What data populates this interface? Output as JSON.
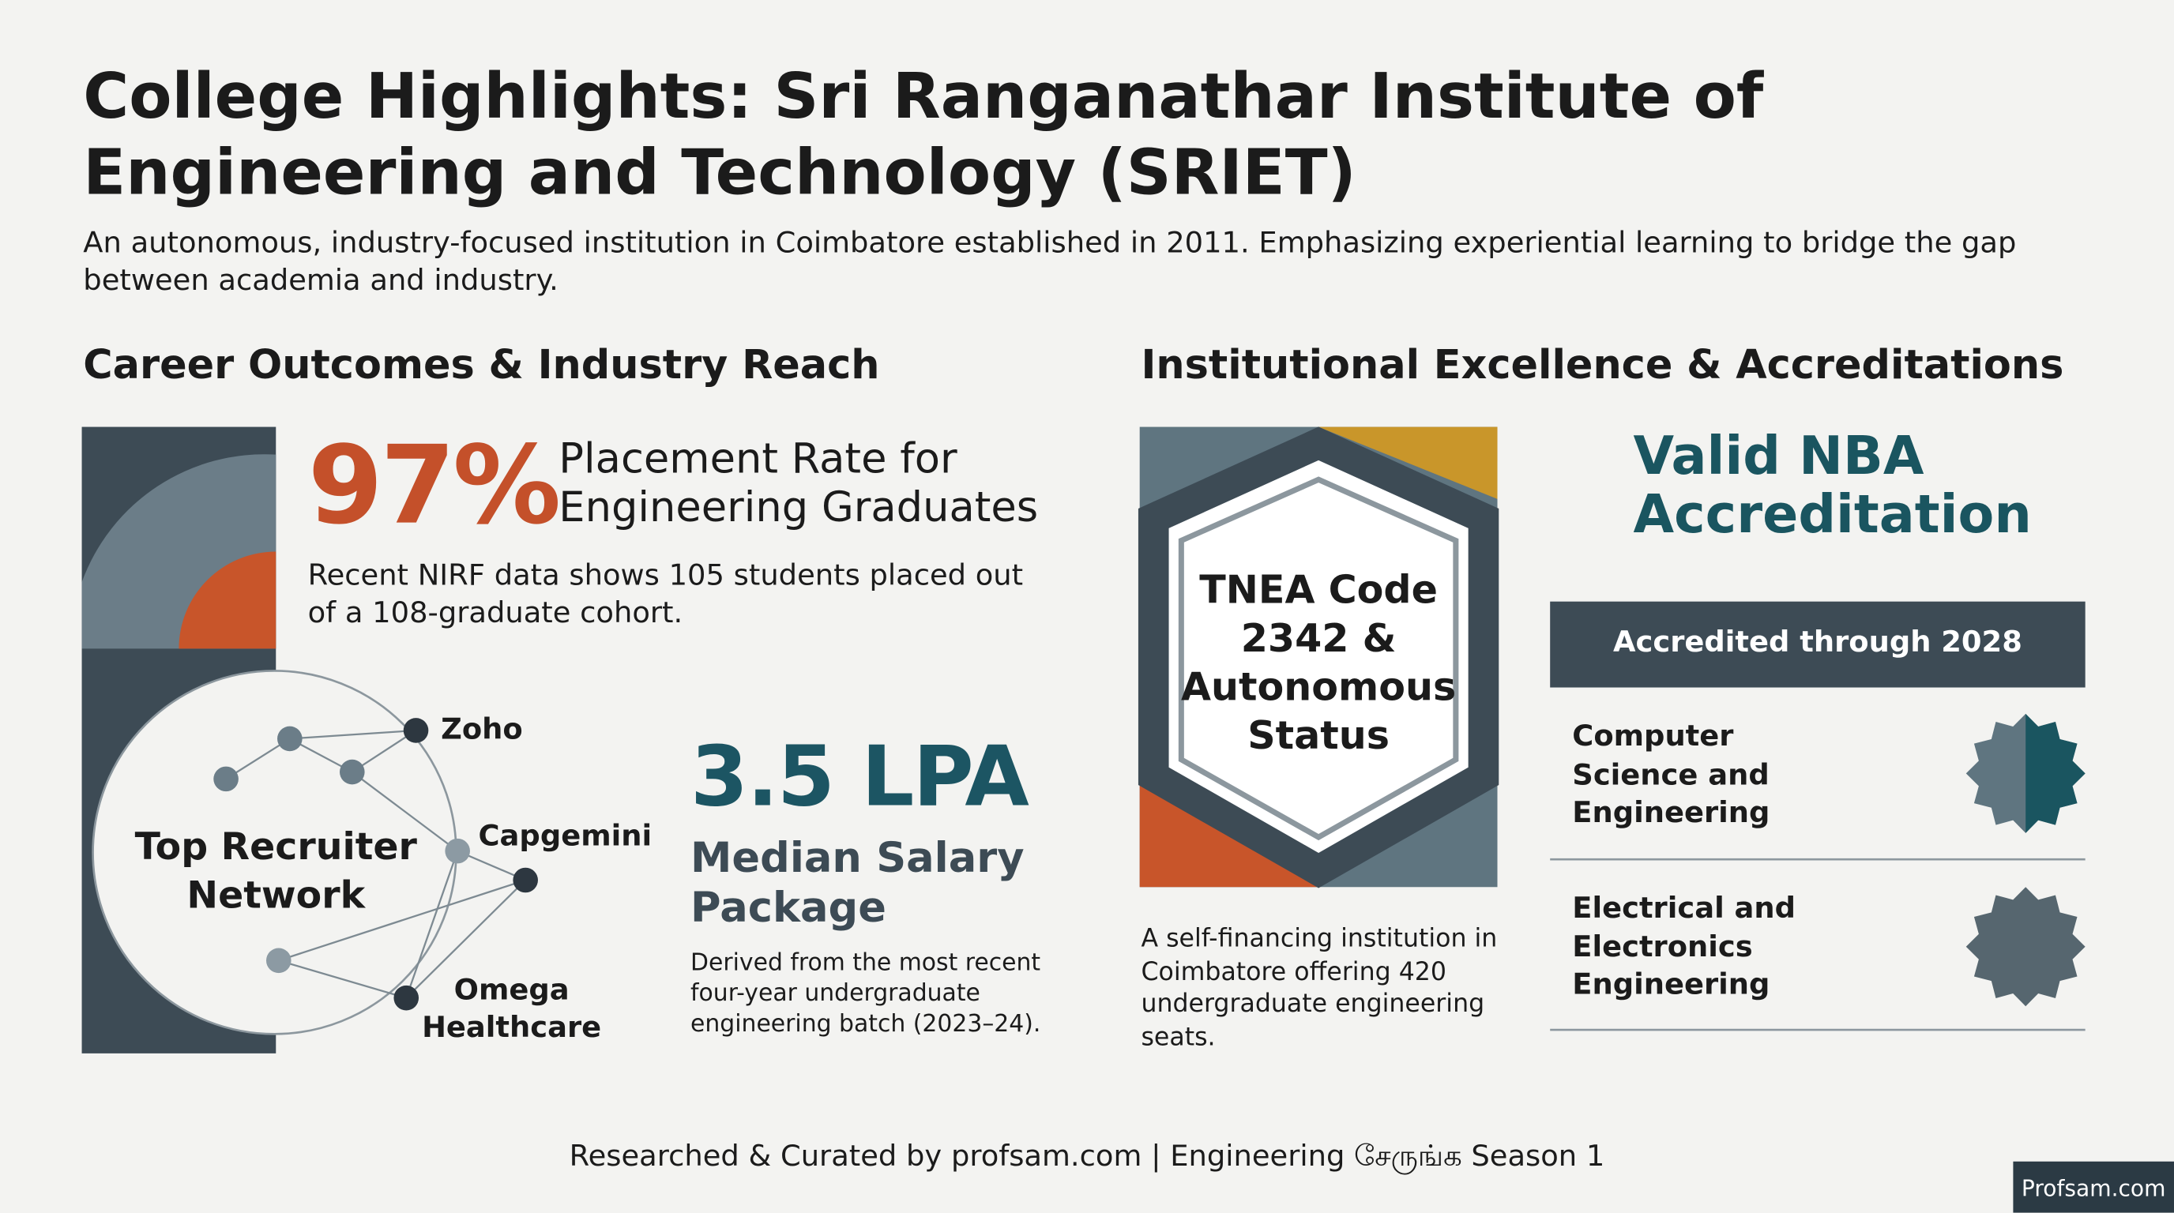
{
  "header": {
    "title": "College Highlights: Sri Ranganathar Institute of Engineering and Technology (SRIET)",
    "subtitle": "An autonomous, industry-focused institution in Coimbatore established in 2011. Emphasizing experiential learning to bridge the gap between academia and industry."
  },
  "career": {
    "heading": "Career Outcomes & Industry Reach",
    "placement": {
      "value": "97%",
      "label": "Placement Rate for Engineering Graduates",
      "note": "Recent NIRF data shows 105 students placed out of a 108-graduate cohort."
    },
    "recruiters": {
      "title": "Top Recruiter Network",
      "companies": [
        "Zoho",
        "Capgemini",
        "Omega Healthcare"
      ]
    },
    "salary": {
      "value": "3.5 LPA",
      "label": "Median Salary Package",
      "note": "Derived from the most recent four-year undergraduate engineering batch (2023–24)."
    }
  },
  "institution": {
    "heading": "Institutional Excellence & Accreditations",
    "badge": "TNEA Code 2342 & Autonomous Status",
    "note": "A self-financing institution in Coimbatore offering 420 undergraduate engineering seats.",
    "nba": {
      "title": "Valid NBA Accreditation",
      "banner": "Accredited through 2028",
      "programs": [
        "Computer Science and Engineering",
        "Electrical and Electronics Engineering"
      ]
    }
  },
  "footer": {
    "credit": "Researched & Curated by profsam.com | Engineering சேருங்க Season 1",
    "logo": "Profsam.com"
  }
}
